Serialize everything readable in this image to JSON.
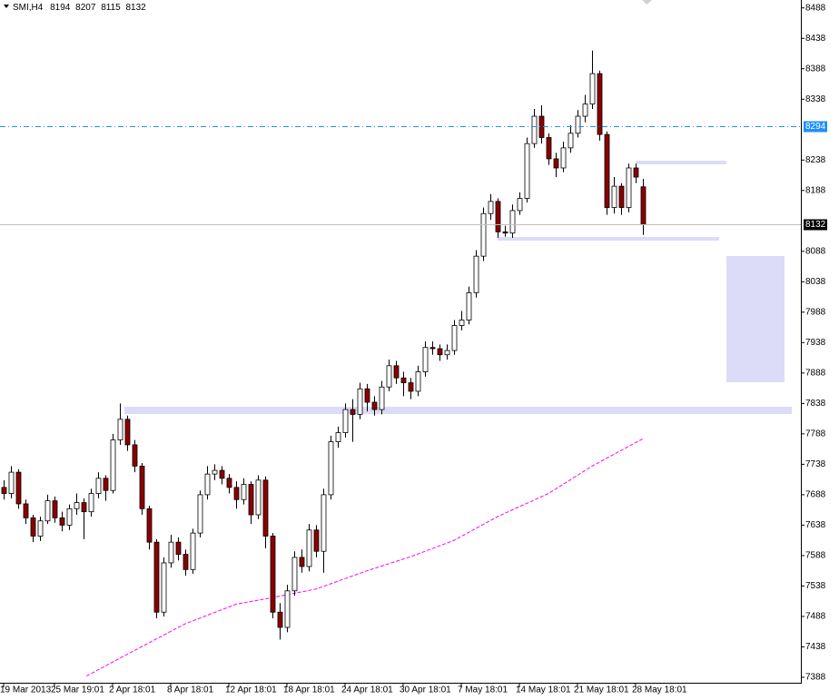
{
  "chart_data": {
    "type": "candlestick",
    "symbol": "SMI,H4",
    "xlim": [
      -0.5,
      109.75
    ],
    "ylim": [
      7379,
      8501
    ],
    "yticks": [
      8488,
      8438,
      8388,
      8338,
      8238,
      8188,
      8088,
      8038,
      7988,
      7938,
      7888,
      7838,
      7788,
      7738,
      7688,
      7638,
      7588,
      7538,
      7488,
      7438,
      7388
    ],
    "xticks": [
      {
        "value": 0,
        "label": "19 Mar 2013"
      },
      {
        "value": 7,
        "label": "25 Mar 19:01"
      },
      {
        "value": 15,
        "label": "2 Apr 18:01"
      },
      {
        "value": 23,
        "label": "8 Apr 18:01"
      },
      {
        "value": 31,
        "label": "12 Apr 18:01"
      },
      {
        "value": 39,
        "label": "18 Apr 18:01"
      },
      {
        "value": 47,
        "label": "24 Apr 18:01"
      },
      {
        "value": 55,
        "label": "30 Apr 18:01"
      },
      {
        "value": 63,
        "label": "7 May 18:01"
      },
      {
        "value": 71,
        "label": "14 May 18:01"
      },
      {
        "value": 79,
        "label": "21 May 18:01"
      },
      {
        "value": 87,
        "label": "28 May 18:01"
      }
    ],
    "up_color": "#ffffff",
    "down_color": "#8b0000",
    "candles": {
      "open": [
        7700,
        7690,
        7725,
        7673,
        7650,
        7620,
        7645,
        7678,
        7650,
        7638,
        7665,
        7675,
        7660,
        7690,
        7715,
        7695,
        7778,
        7812,
        7770,
        7735,
        7665,
        7610,
        7495,
        7576,
        7610,
        7590,
        7565,
        7625,
        7688,
        7722,
        7728,
        7715,
        7700,
        7680,
        7705,
        7655,
        7712,
        7620,
        7495,
        7470,
        7530,
        7585,
        7570,
        7630,
        7595,
        7688,
        7775,
        7790,
        7828,
        7820,
        7862,
        7840,
        7828,
        7865,
        7900,
        7880,
        7872,
        7858,
        7890,
        7930,
        7928,
        7918,
        7925,
        7966,
        7975,
        8020,
        8080,
        8150,
        8170,
        8120,
        8118,
        8155,
        8175,
        8265,
        8310,
        8275,
        8240,
        8225,
        8258,
        8282,
        8310,
        8330,
        8380,
        8280,
        8160,
        8195,
        8160,
        8225,
        8194
      ],
      "high": [
        7712,
        7735,
        7730,
        7680,
        7655,
        7652,
        7688,
        7685,
        7660,
        7672,
        7690,
        7682,
        7698,
        7725,
        7720,
        7788,
        7838,
        7818,
        7778,
        7740,
        7670,
        7615,
        7585,
        7622,
        7618,
        7598,
        7632,
        7695,
        7735,
        7738,
        7735,
        7722,
        7710,
        7715,
        7710,
        7720,
        7718,
        7625,
        7510,
        7540,
        7595,
        7598,
        7640,
        7638,
        7698,
        7785,
        7800,
        7838,
        7845,
        7872,
        7870,
        7850,
        7875,
        7910,
        7908,
        7890,
        7880,
        7900,
        7940,
        7940,
        7935,
        7935,
        7975,
        7990,
        8030,
        8090,
        8160,
        8182,
        8175,
        8130,
        8165,
        8185,
        8275,
        8322,
        8328,
        8282,
        8250,
        8268,
        8295,
        8320,
        8345,
        8418,
        8385,
        8285,
        8210,
        8200,
        8232,
        8232,
        8207
      ],
      "low": [
        7680,
        7682,
        7665,
        7640,
        7610,
        7612,
        7640,
        7642,
        7628,
        7630,
        7655,
        7615,
        7652,
        7682,
        7678,
        7690,
        7770,
        7760,
        7725,
        7655,
        7598,
        7485,
        7488,
        7568,
        7580,
        7555,
        7558,
        7618,
        7680,
        7712,
        7705,
        7690,
        7665,
        7672,
        7640,
        7648,
        7600,
        7485,
        7450,
        7462,
        7522,
        7560,
        7562,
        7585,
        7560,
        7680,
        7765,
        7782,
        7775,
        7812,
        7825,
        7818,
        7820,
        7858,
        7870,
        7850,
        7845,
        7850,
        7882,
        7918,
        7908,
        7910,
        7918,
        7958,
        7968,
        8012,
        8072,
        8140,
        8110,
        8112,
        8110,
        8148,
        8168,
        8258,
        8265,
        8230,
        8210,
        8218,
        8250,
        8275,
        8300,
        8322,
        8270,
        8148,
        8150,
        8148,
        8152,
        8200,
        8115
      ],
      "close": [
        7690,
        7725,
        7673,
        7650,
        7620,
        7645,
        7678,
        7650,
        7638,
        7665,
        7675,
        7660,
        7690,
        7715,
        7695,
        7778,
        7812,
        7770,
        7735,
        7665,
        7610,
        7495,
        7576,
        7610,
        7590,
        7565,
        7625,
        7688,
        7722,
        7728,
        7715,
        7700,
        7680,
        7705,
        7655,
        7712,
        7620,
        7495,
        7470,
        7530,
        7585,
        7570,
        7630,
        7595,
        7688,
        7775,
        7790,
        7828,
        7820,
        7862,
        7840,
        7828,
        7865,
        7900,
        7880,
        7872,
        7858,
        7890,
        7930,
        7928,
        7918,
        7925,
        7966,
        7975,
        8020,
        8080,
        8150,
        8170,
        8120,
        8118,
        8155,
        8175,
        8265,
        8310,
        8275,
        8240,
        8225,
        8258,
        8282,
        8310,
        8330,
        8380,
        8280,
        8160,
        8195,
        8160,
        8225,
        8210,
        8132
      ]
    },
    "ma": {
      "color": "#ff00ff",
      "x": [
        11.4,
        18,
        25,
        32,
        37,
        43,
        50,
        56,
        62,
        68,
        75,
        81,
        88
      ],
      "values": [
        7390,
        7432,
        7476,
        7508,
        7519,
        7533,
        7563,
        7586,
        7613,
        7652,
        7690,
        7735,
        7780
      ]
    },
    "hlines": [
      {
        "value": 8294,
        "color": "#1e90ff"
      },
      {
        "value": 8132,
        "color": "#c0c0c0"
      }
    ]
  }
}
